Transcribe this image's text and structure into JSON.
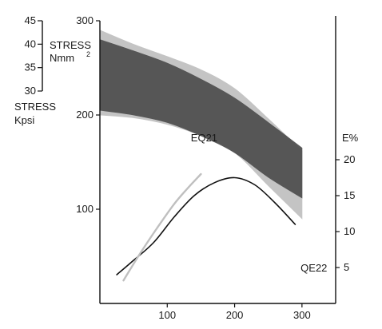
{
  "chart_data": {
    "type": "area",
    "title": "",
    "xlabel": "",
    "xlim": [
      0,
      350
    ],
    "x_ticks": [
      "100",
      "200",
      "300"
    ],
    "left_axis": {
      "ylabel_lines": [
        "STRESS",
        "Nmm"
      ],
      "ylabel_superscript": "2",
      "ylim": [
        0,
        300
      ],
      "ticks": [
        "100",
        "200",
        "300"
      ]
    },
    "kpsi_axis": {
      "ylabel_lines": [
        "STRESS",
        "Kpsi"
      ],
      "ylim": [
        30,
        45
      ],
      "ticks": [
        "30",
        "35",
        "40",
        "45"
      ]
    },
    "right_axis": {
      "ylabel": "E%",
      "ylim": [
        0,
        40
      ],
      "ticks": [
        "5",
        "10",
        "15",
        "20"
      ]
    },
    "series": [
      {
        "name": "EQ21",
        "axis": "left",
        "kind": "band",
        "color": "#4d4d4d",
        "x": [
          0,
          50,
          100,
          150,
          200,
          250,
          300
        ],
        "upper": [
          280,
          268,
          255,
          238,
          218,
          192,
          165
        ],
        "lower": [
          205,
          200,
          192,
          178,
          160,
          134,
          112
        ]
      },
      {
        "name": "QE22",
        "axis": "left",
        "kind": "band",
        "color": "#c4c4c4",
        "x": [
          0,
          50,
          100,
          150,
          200,
          250,
          300
        ],
        "upper": [
          290,
          275,
          262,
          248,
          228,
          196,
          162
        ],
        "lower": [
          200,
          197,
          190,
          178,
          160,
          125,
          90
        ]
      },
      {
        "name": "EQ21",
        "axis": "right",
        "kind": "line",
        "color": "#111111",
        "x": [
          25,
          50,
          80,
          110,
          140,
          170,
          200,
          230,
          260,
          290
        ],
        "y": [
          4.0,
          6.0,
          8.5,
          12.0,
          15.0,
          16.8,
          17.5,
          16.5,
          14.0,
          11.0
        ]
      },
      {
        "name": "QE22",
        "axis": "right",
        "kind": "line",
        "color": "#bfbfbf",
        "x": [
          35,
          60,
          85,
          110,
          130,
          150
        ],
        "y": [
          3.2,
          7.0,
          10.5,
          13.8,
          16.0,
          18.0
        ]
      }
    ],
    "annotations": [
      {
        "text": "EQ21",
        "x": 135,
        "y": 172,
        "axis": "left"
      },
      {
        "text": "QE22",
        "x": 298,
        "y": 34,
        "axis": "left"
      }
    ],
    "grid": false,
    "legend": "none"
  }
}
